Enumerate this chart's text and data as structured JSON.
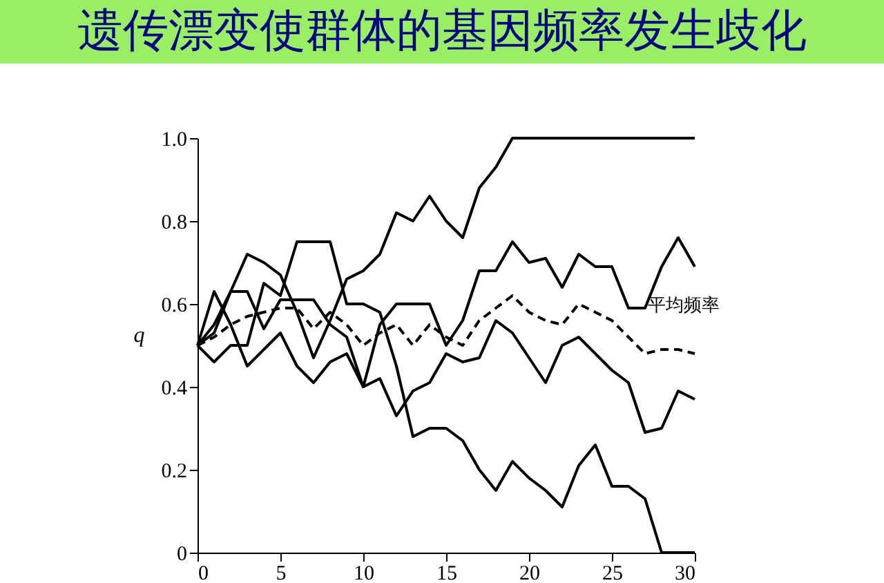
{
  "chart_data": {
    "type": "line",
    "title": "遗传漂变使群体的基因频率发生歧化",
    "ylabel": "q",
    "x": [
      0,
      1,
      2,
      3,
      4,
      5,
      6,
      7,
      8,
      9,
      10,
      11,
      12,
      13,
      14,
      15,
      16,
      17,
      18,
      19,
      20,
      21,
      22,
      23,
      24,
      25,
      26,
      27,
      28,
      29,
      30
    ],
    "series": [
      {
        "color": "#000000",
        "line_style": "solid",
        "values": [
          0.5,
          0.55,
          0.63,
          0.72,
          0.7,
          0.67,
          0.58,
          0.47,
          0.56,
          0.66,
          0.68,
          0.72,
          0.82,
          0.8,
          0.86,
          0.8,
          0.76,
          0.88,
          0.93,
          1.0,
          1.0,
          1.0,
          1.0,
          1.0,
          1.0,
          1.0,
          1.0,
          1.0,
          1.0,
          1.0,
          1.0
        ]
      },
      {
        "color": "#000000",
        "line_style": "solid",
        "values": [
          0.5,
          0.63,
          0.55,
          0.45,
          0.49,
          0.53,
          0.45,
          0.41,
          0.46,
          0.48,
          0.4,
          0.55,
          0.6,
          0.6,
          0.6,
          0.5,
          0.56,
          0.68,
          0.68,
          0.75,
          0.7,
          0.71,
          0.64,
          0.72,
          0.69,
          0.69,
          0.59,
          0.59,
          0.69,
          0.76,
          0.69
        ]
      },
      {
        "color": "#000000",
        "line_style": "solid",
        "values": [
          0.5,
          0.46,
          0.5,
          0.5,
          0.65,
          0.62,
          0.75,
          0.75,
          0.75,
          0.6,
          0.6,
          0.58,
          0.45,
          0.28,
          0.3,
          0.3,
          0.27,
          0.2,
          0.15,
          0.22,
          0.18,
          0.15,
          0.11,
          0.21,
          0.26,
          0.16,
          0.16,
          0.13,
          0,
          0,
          0
        ]
      },
      {
        "color": "#000000",
        "line_style": "solid",
        "values": [
          0.5,
          0.53,
          0.63,
          0.63,
          0.54,
          0.61,
          0.61,
          0.61,
          0.55,
          0.52,
          0.4,
          0.42,
          0.33,
          0.39,
          0.41,
          0.48,
          0.46,
          0.47,
          0.56,
          0.53,
          0.47,
          0.41,
          0.5,
          0.52,
          0.48,
          0.44,
          0.41,
          0.29,
          0.3,
          0.39,
          0.37
        ]
      },
      {
        "color": "#000000",
        "line_style": "dashed",
        "values": [
          0.5,
          0.52,
          0.55,
          0.57,
          0.58,
          0.59,
          0.59,
          0.54,
          0.58,
          0.55,
          0.5,
          0.53,
          0.55,
          0.5,
          0.55,
          0.52,
          0.5,
          0.56,
          0.59,
          0.62,
          0.58,
          0.56,
          0.55,
          0.6,
          0.58,
          0.56,
          0.52,
          0.48,
          0.49,
          0.49,
          0.48
        ]
      }
    ],
    "annotations": [
      {
        "text": "平均频率",
        "x": 29,
        "y": 0.49
      }
    ],
    "xlim": [
      0,
      30
    ],
    "xticks": [
      0,
      5,
      10,
      15,
      20,
      25,
      30
    ],
    "ylim": [
      0,
      1
    ],
    "yticks": [
      0,
      0.2,
      0.4,
      0.6,
      0.8,
      {
        "value": 1,
        "label": "1.0"
      }
    ],
    "grid": false,
    "legend": false,
    "marker": "none"
  }
}
